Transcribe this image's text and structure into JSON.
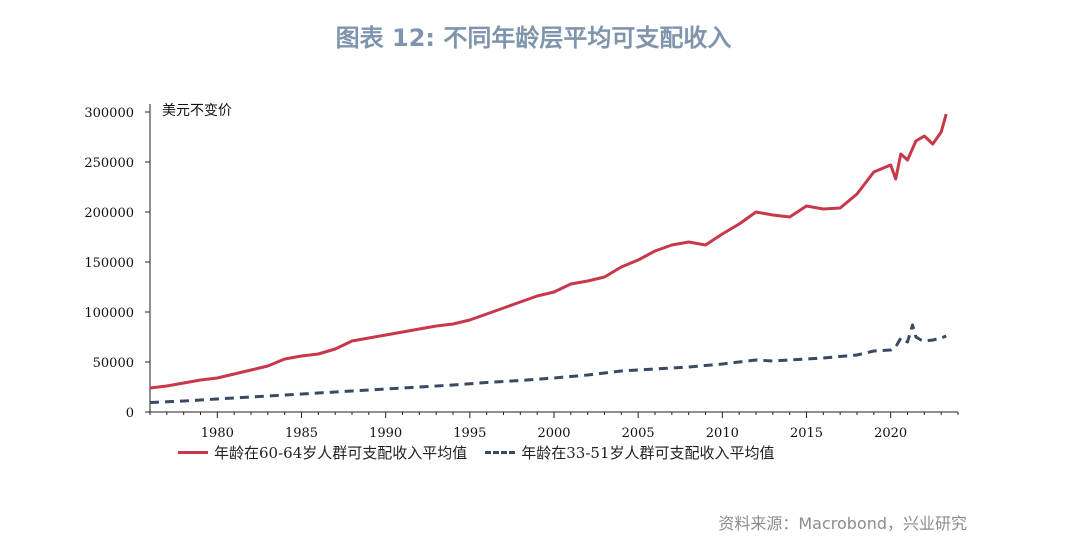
{
  "title": "图表 12: 不同年龄层平均可支配收入",
  "source": "资料来源：Macrobond，兴业研究",
  "chart_data": {
    "type": "line",
    "unit_label": "美元不变价",
    "ylim": [
      0,
      300000
    ],
    "xlim": [
      1976,
      2024
    ],
    "y_ticks": [
      "0",
      "50000",
      "100000",
      "150000",
      "200000",
      "250000",
      "300000"
    ],
    "y_tick_values": [
      0,
      50000,
      100000,
      150000,
      200000,
      250000,
      300000
    ],
    "x_ticks": [
      "1980",
      "1985",
      "1990",
      "1995",
      "2000",
      "2005",
      "2010",
      "2015",
      "2020"
    ],
    "x_tick_values": [
      1980,
      1985,
      1990,
      1995,
      2000,
      2005,
      2010,
      2015,
      2020
    ],
    "series": [
      {
        "name": "年龄在60-64岁人群可支配收入平均值",
        "color": "#c8374a",
        "style": "solid",
        "x": [
          1976,
          1977,
          1978,
          1979,
          1980,
          1981,
          1982,
          1983,
          1984,
          1985,
          1986,
          1987,
          1988,
          1989,
          1990,
          1991,
          1992,
          1993,
          1994,
          1995,
          1996,
          1997,
          1998,
          1999,
          2000,
          2001,
          2002,
          2003,
          2004,
          2005,
          2006,
          2007,
          2008,
          2009,
          2010,
          2011,
          2012,
          2013,
          2014,
          2015,
          2016,
          2017,
          2018,
          2019,
          2020,
          2020.3,
          2020.6,
          2021,
          2021.5,
          2022,
          2022.5,
          2023,
          2023.3
        ],
        "values": [
          24000,
          26000,
          29000,
          32000,
          34000,
          38000,
          42000,
          46000,
          53000,
          56000,
          58000,
          63000,
          71000,
          74000,
          77000,
          80000,
          83000,
          86000,
          88000,
          92000,
          98000,
          104000,
          110000,
          116000,
          120000,
          128000,
          131000,
          135000,
          145000,
          152000,
          161000,
          167000,
          170000,
          167000,
          178000,
          188000,
          200000,
          197000,
          195000,
          206000,
          203000,
          204000,
          218000,
          240000,
          247000,
          233000,
          258000,
          252000,
          271000,
          276000,
          268000,
          280000,
          298000
        ]
      },
      {
        "name": "年龄在33-51岁人群可支配收入平均值",
        "color": "#3a4a63",
        "style": "dashed",
        "x": [
          1976,
          1978,
          1980,
          1982,
          1984,
          1986,
          1988,
          1990,
          1992,
          1994,
          1996,
          1998,
          2000,
          2002,
          2004,
          2006,
          2008,
          2010,
          2012,
          2013,
          2014,
          2016,
          2018,
          2019,
          2020,
          2020.3,
          2020.6,
          2021,
          2021.3,
          2021.5,
          2021.8,
          2022,
          2022.5,
          2023,
          2023.3
        ],
        "values": [
          9500,
          11000,
          13000,
          15000,
          17000,
          19000,
          21000,
          23000,
          25000,
          27000,
          29500,
          31500,
          34000,
          37000,
          41000,
          43000,
          45000,
          48000,
          52000,
          51000,
          52000,
          54000,
          57000,
          61000,
          62000,
          65000,
          74000,
          70000,
          87000,
          75000,
          72000,
          71000,
          72000,
          74000,
          76000
        ]
      }
    ]
  }
}
